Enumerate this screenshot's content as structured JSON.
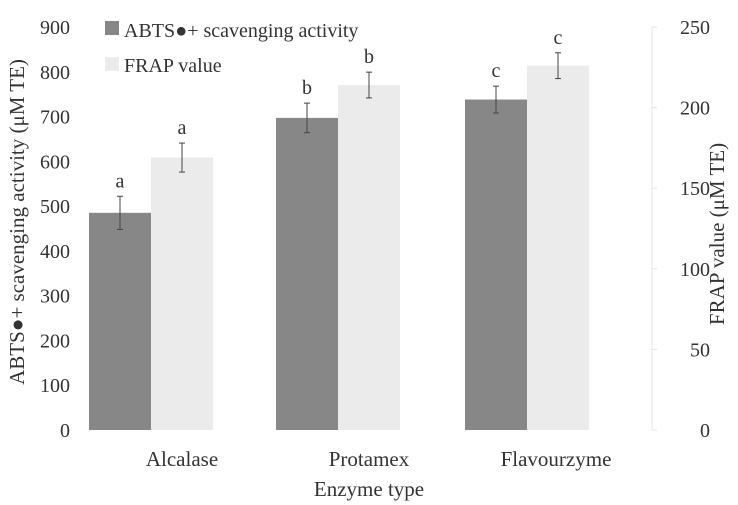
{
  "chart_data": {
    "type": "bar",
    "categories": [
      "Alcalase",
      "Protamex",
      "Flavourzyme"
    ],
    "xlabel": "Enzyme type",
    "ylabel_left": "ABTS●+ scavenging activity (μM TE)",
    "ylabel_right": "FRAP value (μM TE)",
    "y_left": {
      "min": 0,
      "max": 900,
      "ticks": [
        "0",
        "100",
        "200",
        "300",
        "400",
        "500",
        "600",
        "700",
        "800",
        "900"
      ]
    },
    "y_right": {
      "min": 0,
      "max": 250,
      "ticks": [
        "0",
        "50",
        "100",
        "150",
        "200",
        "250"
      ]
    },
    "grid": false,
    "legend_position": "top-left",
    "series": [
      {
        "name": "ABTS●+ scavenging activity",
        "axis": "left",
        "color": "#878787",
        "values": [
          485,
          697,
          738
        ],
        "errors": [
          37,
          33,
          30
        ],
        "labels": [
          "a",
          "b",
          "c"
        ]
      },
      {
        "name": "FRAP value",
        "axis": "right",
        "color": "#ebebeb",
        "values": [
          169,
          214,
          226
        ],
        "errors": [
          9,
          8,
          8
        ],
        "labels": [
          "a",
          "b",
          "c"
        ]
      }
    ]
  }
}
